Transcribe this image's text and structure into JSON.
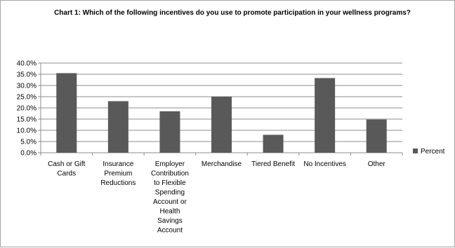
{
  "chart_data": {
    "type": "bar",
    "title": "Chart 1:  Which of the following incentives do you use to promote participation in your wellness programs?",
    "categories": [
      "Cash or Gift Cards",
      "Insurance Premium Reductions",
      "Employer Contribution to Flexible Spending Account or Health Savings Account",
      "Merchandise",
      "Tiered Benefit",
      "No Incentives",
      "Other"
    ],
    "category_label_lines": [
      [
        "Cash or Gift",
        "Cards"
      ],
      [
        "Insurance",
        "Premium",
        "Reductions"
      ],
      [
        "Employer",
        "Contribution",
        "to Flexible",
        "Spending",
        "Account or",
        "Health",
        "Savings",
        "Account"
      ],
      [
        "Merchandise"
      ],
      [
        "Tiered Benefit"
      ],
      [
        "No Incentives"
      ],
      [
        "Other"
      ]
    ],
    "series": [
      {
        "name": "Percent",
        "values": [
          35.5,
          23.0,
          18.5,
          25.0,
          8.0,
          33.3,
          14.8
        ]
      }
    ],
    "ylim": [
      0,
      40
    ],
    "yticks": [
      0,
      5,
      10,
      15,
      20,
      25,
      30,
      35,
      40
    ],
    "ytick_labels": [
      "0.0%",
      "5.0%",
      "10.0%",
      "15.0%",
      "20.0%",
      "25.0%",
      "30.0%",
      "35.0%",
      "40.0%"
    ],
    "grid": true,
    "legend_position": "right",
    "colors": {
      "bar": "#595959",
      "grid": "#8c8c8c",
      "axis": "#8c8c8c"
    }
  }
}
